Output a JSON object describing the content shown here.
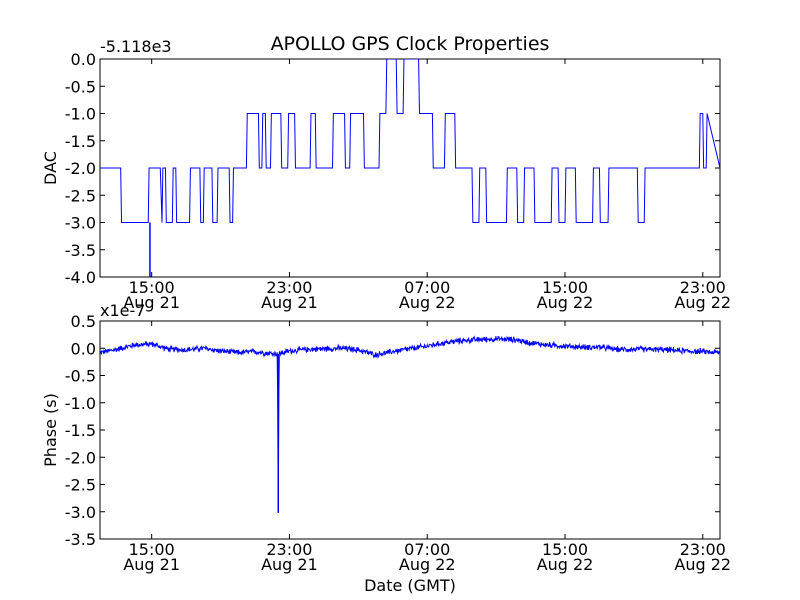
{
  "chart_data": [
    {
      "type": "line",
      "title": "APOLLO GPS Clock Properties",
      "offset_text": "-5.118e3",
      "xlabel": "",
      "ylabel": "DAC",
      "ylim": [
        -4.0,
        0.0
      ],
      "xlim_hours": [
        0,
        36
      ],
      "y_ticks": [
        {
          "value": 0.0,
          "label": "0.0"
        },
        {
          "value": -0.5,
          "label": "-0.5"
        },
        {
          "value": -1.0,
          "label": "-1.0"
        },
        {
          "value": -1.5,
          "label": "-1.5"
        },
        {
          "value": -2.0,
          "label": "-2.0"
        },
        {
          "value": -2.5,
          "label": "-2.5"
        },
        {
          "value": -3.0,
          "label": "-3.0"
        },
        {
          "value": -3.5,
          "label": "-3.5"
        },
        {
          "value": -4.0,
          "label": "-4.0"
        }
      ],
      "x_ticks": [
        {
          "hour": 3.0,
          "time": "15:00",
          "date": "Aug 21"
        },
        {
          "hour": 11.0,
          "time": "23:00",
          "date": "Aug 21"
        },
        {
          "hour": 19.0,
          "time": "07:00",
          "date": "Aug 22"
        },
        {
          "hour": 27.0,
          "time": "15:00",
          "date": "Aug 22"
        },
        {
          "hour": 35.0,
          "time": "23:00",
          "date": "Aug 22"
        }
      ],
      "series": [
        {
          "name": "DAC",
          "color": "#0000ff",
          "x": [
            0.0,
            1.2,
            1.25,
            2.8,
            2.85,
            3.5,
            3.6,
            3.65,
            3.8,
            3.85,
            4.2,
            4.25,
            4.4,
            4.45,
            5.2,
            5.25,
            5.8,
            5.85,
            6.0,
            6.05,
            6.5,
            6.55,
            6.8,
            6.85,
            7.5,
            7.55,
            7.7,
            7.75,
            8.5,
            8.55,
            9.2,
            9.25,
            9.4,
            9.45,
            9.6,
            9.65,
            9.9,
            9.95,
            10.5,
            10.55,
            10.9,
            10.95,
            11.3,
            11.35,
            12.2,
            12.25,
            12.5,
            12.55,
            13.5,
            13.55,
            14.2,
            14.25,
            14.5,
            14.55,
            15.3,
            15.35,
            16.2,
            16.25,
            16.6,
            16.65,
            17.2,
            17.25,
            17.6,
            17.65,
            18.5,
            18.55,
            19.3,
            19.35,
            20.0,
            20.05,
            20.6,
            20.65,
            21.6,
            21.65,
            22.0,
            22.05,
            22.4,
            22.45,
            23.6,
            23.65,
            24.2,
            24.25,
            24.6,
            24.65,
            25.2,
            25.25,
            26.2,
            26.25,
            26.6,
            26.65,
            27.0,
            27.05,
            27.6,
            27.65,
            28.6,
            28.65,
            29.0,
            29.05,
            29.5,
            29.55,
            31.2,
            31.25,
            31.6,
            31.65,
            32.0,
            32.05,
            34.8,
            34.85,
            35.0,
            35.05,
            35.2,
            35.25,
            36.0
          ],
          "y": [
            -2.0,
            -2.0,
            -3.0,
            -3.0,
            -2.0,
            -2.0,
            -3.0,
            -2.0,
            -2.0,
            -3.0,
            -3.0,
            -2.0,
            -2.0,
            -3.0,
            -3.0,
            -2.0,
            -2.0,
            -3.0,
            -3.0,
            -2.0,
            -2.0,
            -3.0,
            -3.0,
            -2.0,
            -2.0,
            -3.0,
            -3.0,
            -2.0,
            -2.0,
            -1.0,
            -1.0,
            -2.0,
            -2.0,
            -1.0,
            -1.0,
            -2.0,
            -2.0,
            -1.0,
            -1.0,
            -2.0,
            -2.0,
            -1.0,
            -1.0,
            -2.0,
            -2.0,
            -1.0,
            -1.0,
            -2.0,
            -2.0,
            -1.0,
            -1.0,
            -2.0,
            -2.0,
            -1.0,
            -1.0,
            -2.0,
            -2.0,
            -1.0,
            -1.0,
            0.0,
            0.0,
            -1.0,
            -1.0,
            0.0,
            0.0,
            -1.0,
            -1.0,
            -2.0,
            -2.0,
            -1.0,
            -1.0,
            -2.0,
            -2.0,
            -3.0,
            -3.0,
            -2.0,
            -2.0,
            -3.0,
            -3.0,
            -2.0,
            -2.0,
            -3.0,
            -3.0,
            -2.0,
            -2.0,
            -3.0,
            -3.0,
            -2.0,
            -2.0,
            -3.0,
            -3.0,
            -2.0,
            -2.0,
            -3.0,
            -3.0,
            -2.0,
            -2.0,
            -3.0,
            -3.0,
            -2.0,
            -2.0,
            -3.0,
            -3.0,
            -2.0,
            -2.0,
            -2.0,
            -2.0,
            -1.0,
            -1.0,
            -2.0,
            -2.0,
            -1.0,
            -2.0
          ],
          "spikes": [
            {
              "hour": 2.9,
              "min": -4.0,
              "max": -3.0
            }
          ]
        }
      ]
    },
    {
      "type": "line",
      "title": "",
      "offset_text": "x1e-7",
      "xlabel": "Date (GMT)",
      "ylabel": "Phase (s)",
      "ylim": [
        -3.5,
        0.5
      ],
      "xlim_hours": [
        0,
        36
      ],
      "y_ticks": [
        {
          "value": 0.5,
          "label": "0.5"
        },
        {
          "value": 0.0,
          "label": "0.0"
        },
        {
          "value": -0.5,
          "label": "-0.5"
        },
        {
          "value": -1.0,
          "label": "-1.0"
        },
        {
          "value": -1.5,
          "label": "-1.5"
        },
        {
          "value": -2.0,
          "label": "-2.0"
        },
        {
          "value": -2.5,
          "label": "-2.5"
        },
        {
          "value": -3.0,
          "label": "-3.0"
        },
        {
          "value": -3.5,
          "label": "-3.5"
        }
      ],
      "x_ticks": [
        {
          "hour": 3.0,
          "time": "15:00",
          "date": "Aug 21"
        },
        {
          "hour": 11.0,
          "time": "23:00",
          "date": "Aug 21"
        },
        {
          "hour": 19.0,
          "time": "07:00",
          "date": "Aug 22"
        },
        {
          "hour": 27.0,
          "time": "15:00",
          "date": "Aug 22"
        },
        {
          "hour": 35.0,
          "time": "23:00",
          "date": "Aug 22"
        }
      ],
      "series": [
        {
          "name": "Phase",
          "color": "#0000ff",
          "x": [
            0.0,
            1.0,
            2.0,
            3.0,
            4.0,
            5.0,
            6.0,
            7.0,
            8.0,
            9.0,
            10.0,
            10.3,
            10.35,
            10.4,
            11.0,
            12.0,
            13.0,
            14.0,
            15.0,
            16.0,
            17.0,
            18.0,
            19.0,
            20.0,
            21.0,
            22.0,
            23.0,
            24.0,
            25.0,
            26.0,
            27.0,
            28.0,
            29.0,
            30.0,
            31.0,
            32.0,
            33.0,
            34.0,
            35.0,
            36.0
          ],
          "y": [
            -0.08,
            -0.02,
            0.06,
            0.08,
            -0.02,
            -0.03,
            0.0,
            -0.05,
            -0.08,
            -0.06,
            -0.1,
            -0.1,
            -3.02,
            -0.1,
            -0.05,
            -0.02,
            -0.01,
            0.0,
            -0.03,
            -0.12,
            -0.06,
            -0.01,
            0.04,
            0.1,
            0.14,
            0.16,
            0.17,
            0.16,
            0.1,
            0.06,
            0.04,
            0.02,
            0.02,
            -0.02,
            -0.02,
            -0.02,
            -0.03,
            -0.05,
            -0.06,
            -0.08
          ],
          "noise_amplitude": 0.08
        }
      ]
    }
  ]
}
